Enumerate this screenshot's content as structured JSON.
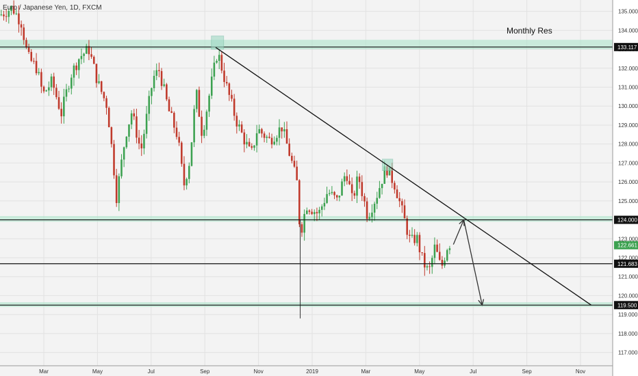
{
  "chart_data": {
    "type": "candlestick",
    "title": "Euro / Japanese Yen, 1D, FXCM",
    "annotation": "Monthly Res",
    "y_ticks": [
      117,
      118,
      119,
      120,
      121,
      122,
      123,
      124,
      125,
      126,
      127,
      128,
      129,
      130,
      131,
      132,
      133,
      134,
      135
    ],
    "y_tick_labels": [
      "117.000",
      "118.000",
      "119.000",
      "120.000",
      "121.000",
      "122.000",
      "123.000",
      "124.000",
      "125.000",
      "126.000",
      "127.000",
      "128.000",
      "129.000",
      "130.000",
      "131.000",
      "132.000",
      "133.000",
      "134.000",
      "135.000"
    ],
    "x_ticks": [
      "Mar",
      "May",
      "Jul",
      "Sep",
      "Nov",
      "2019",
      "Mar",
      "May",
      "Jul",
      "Sep",
      "Nov"
    ],
    "ylim": [
      116.3,
      135.6
    ],
    "grid": true,
    "bull_color": "#3ca150",
    "bear_color": "#c0392b",
    "zone_color": "#b6e6d0",
    "zones": [
      {
        "from": 133.0,
        "to": 133.5
      },
      {
        "from": 123.9,
        "to": 124.2
      },
      {
        "from": 119.4,
        "to": 119.65
      }
    ],
    "horizontal_lines": [
      {
        "price": 133.117,
        "label": "133.117",
        "color": "#111111"
      },
      {
        "price": 124.0,
        "label": "124.000",
        "color": "#111111"
      },
      {
        "price": 121.683,
        "label": "121.683",
        "color": "#111111"
      },
      {
        "price": 119.5,
        "label": "119.500",
        "color": "#111111"
      }
    ],
    "current_price": {
      "price": 122.661,
      "label": "122.661",
      "color": "#3ca150"
    },
    "trendline": [
      {
        "x": 0.352,
        "y": 133.1
      },
      {
        "x": 0.965,
        "y": 119.5
      }
    ],
    "projection": [
      {
        "x": 0.74,
        "y": 122.7
      },
      {
        "x": 0.757,
        "y": 124.0
      },
      {
        "x": 0.787,
        "y": 119.5
      }
    ],
    "highlight_boxes": [
      {
        "x0": 0.345,
        "x1": 0.365,
        "y0": 133.0,
        "y1": 133.7
      },
      {
        "x0": 0.624,
        "x1": 0.641,
        "y0": 126.6,
        "y1": 127.2
      }
    ],
    "anchors": [
      {
        "x": 0.0,
        "y": 134.8
      },
      {
        "x": 0.02,
        "y": 135.2
      },
      {
        "x": 0.035,
        "y": 134.4
      },
      {
        "x": 0.045,
        "y": 132.6
      },
      {
        "x": 0.06,
        "y": 132.0
      },
      {
        "x": 0.07,
        "y": 130.6
      },
      {
        "x": 0.085,
        "y": 131.3
      },
      {
        "x": 0.1,
        "y": 129.6
      },
      {
        "x": 0.115,
        "y": 131.6
      },
      {
        "x": 0.13,
        "y": 132.6
      },
      {
        "x": 0.145,
        "y": 133.0
      },
      {
        "x": 0.16,
        "y": 131.2
      },
      {
        "x": 0.175,
        "y": 130.0
      },
      {
        "x": 0.185,
        "y": 127.0
      },
      {
        "x": 0.19,
        "y": 125.2
      },
      {
        "x": 0.205,
        "y": 128.5
      },
      {
        "x": 0.215,
        "y": 129.7
      },
      {
        "x": 0.23,
        "y": 127.6
      },
      {
        "x": 0.25,
        "y": 131.5
      },
      {
        "x": 0.26,
        "y": 131.9
      },
      {
        "x": 0.275,
        "y": 129.8
      },
      {
        "x": 0.29,
        "y": 128.4
      },
      {
        "x": 0.3,
        "y": 125.8
      },
      {
        "x": 0.31,
        "y": 127.2
      },
      {
        "x": 0.32,
        "y": 130.8
      },
      {
        "x": 0.33,
        "y": 128.5
      },
      {
        "x": 0.345,
        "y": 131.2
      },
      {
        "x": 0.355,
        "y": 132.9
      },
      {
        "x": 0.37,
        "y": 131.0
      },
      {
        "x": 0.385,
        "y": 129.3
      },
      {
        "x": 0.395,
        "y": 128.5
      },
      {
        "x": 0.41,
        "y": 127.4
      },
      {
        "x": 0.42,
        "y": 128.8
      },
      {
        "x": 0.44,
        "y": 128.2
      },
      {
        "x": 0.46,
        "y": 128.9
      },
      {
        "x": 0.475,
        "y": 127.2
      },
      {
        "x": 0.485,
        "y": 125.9
      },
      {
        "x": 0.49,
        "y": 123.2
      },
      {
        "x": 0.5,
        "y": 124.8
      },
      {
        "x": 0.52,
        "y": 124.3
      },
      {
        "x": 0.535,
        "y": 125.5
      },
      {
        "x": 0.55,
        "y": 125.0
      },
      {
        "x": 0.565,
        "y": 126.6
      },
      {
        "x": 0.575,
        "y": 125.0
      },
      {
        "x": 0.585,
        "y": 126.3
      },
      {
        "x": 0.6,
        "y": 124.2
      },
      {
        "x": 0.615,
        "y": 125.3
      },
      {
        "x": 0.63,
        "y": 126.8
      },
      {
        "x": 0.645,
        "y": 125.8
      },
      {
        "x": 0.66,
        "y": 124.0
      },
      {
        "x": 0.67,
        "y": 122.8
      },
      {
        "x": 0.68,
        "y": 123.1
      },
      {
        "x": 0.69,
        "y": 121.8
      },
      {
        "x": 0.7,
        "y": 121.2
      },
      {
        "x": 0.71,
        "y": 122.6
      },
      {
        "x": 0.72,
        "y": 121.4
      },
      {
        "x": 0.73,
        "y": 122.6
      },
      {
        "x": 0.736,
        "y": 122.8
      }
    ],
    "spikes": [
      {
        "x": 0.49,
        "high": 124.0,
        "low": 118.8
      }
    ]
  }
}
